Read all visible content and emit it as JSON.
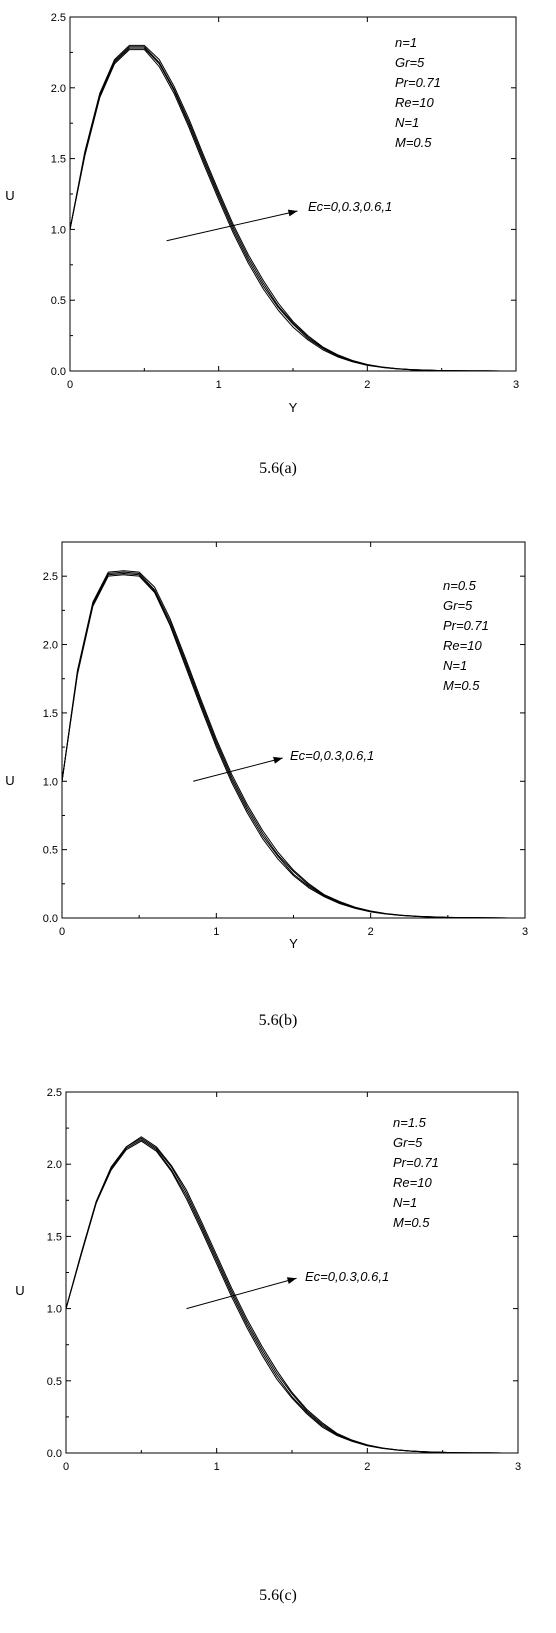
{
  "chart_data": [
    {
      "type": "line",
      "caption": "5.6(a)",
      "xlabel": "Y",
      "ylabel": "U",
      "xlim": [
        0,
        3
      ],
      "ylim": [
        0,
        2.5
      ],
      "xticks": [
        "0",
        "1",
        "2",
        "3"
      ],
      "yticks": [
        "0.0",
        "0.5",
        "1.0",
        "1.5",
        "2.0",
        "2.5"
      ],
      "ytick_values": [
        0,
        0.5,
        1,
        1.5,
        2,
        2.5
      ],
      "xtick_values": [
        0,
        1,
        2,
        3
      ],
      "grid": false,
      "params": [
        "n=1",
        "Gr=5",
        "Pr=0.71",
        "Re=10",
        "N=1",
        "M=0.5"
      ],
      "annotation": "Ec=0,0.3,0.6,1",
      "arrow": {
        "from": [
          0.65,
          0.92
        ],
        "to": [
          1.53,
          1.13
        ]
      },
      "x": [
        0,
        0.1,
        0.2,
        0.3,
        0.4,
        0.5,
        0.6,
        0.7,
        0.8,
        0.9,
        1.0,
        1.1,
        1.2,
        1.3,
        1.4,
        1.5,
        1.6,
        1.7,
        1.8,
        1.9,
        2.0,
        2.1,
        2.2,
        2.3,
        2.4,
        2.5,
        2.6,
        2.7,
        2.8,
        2.9,
        3.0
      ],
      "series": [
        {
          "values": [
            1.0,
            1.52,
            1.93,
            2.17,
            2.27,
            2.27,
            2.15,
            1.96,
            1.72,
            1.46,
            1.21,
            0.97,
            0.76,
            0.58,
            0.43,
            0.31,
            0.22,
            0.15,
            0.1,
            0.065,
            0.04,
            0.025,
            0.015,
            0.009,
            0.005,
            0.003,
            0.002,
            0.001,
            0.0005,
            0.0002,
            0.0
          ]
        },
        {
          "values": [
            1.0,
            1.53,
            1.94,
            2.18,
            2.28,
            2.28,
            2.17,
            1.98,
            1.74,
            1.48,
            1.23,
            0.99,
            0.78,
            0.6,
            0.45,
            0.33,
            0.23,
            0.16,
            0.105,
            0.068,
            0.042,
            0.026,
            0.016,
            0.009,
            0.005,
            0.003,
            0.002,
            0.001,
            0.0005,
            0.0002,
            0.0
          ]
        },
        {
          "values": [
            1.0,
            1.54,
            1.95,
            2.19,
            2.29,
            2.29,
            2.18,
            1.99,
            1.76,
            1.5,
            1.25,
            1.01,
            0.8,
            0.62,
            0.46,
            0.34,
            0.24,
            0.165,
            0.11,
            0.071,
            0.044,
            0.027,
            0.016,
            0.01,
            0.006,
            0.003,
            0.002,
            0.001,
            0.0005,
            0.0002,
            0.0
          ]
        },
        {
          "values": [
            1.0,
            1.55,
            1.96,
            2.2,
            2.3,
            2.3,
            2.2,
            2.01,
            1.78,
            1.52,
            1.27,
            1.03,
            0.82,
            0.64,
            0.48,
            0.35,
            0.25,
            0.17,
            0.115,
            0.074,
            0.046,
            0.028,
            0.017,
            0.01,
            0.006,
            0.003,
            0.002,
            0.001,
            0.0005,
            0.0002,
            0.0
          ]
        }
      ]
    },
    {
      "type": "line",
      "caption": "5.6(b)",
      "xlabel": "Y",
      "ylabel": "U",
      "xlim": [
        0,
        3
      ],
      "ylim": [
        0,
        2.75
      ],
      "xticks": [
        "0",
        "1",
        "2",
        "3"
      ],
      "yticks": [
        "0.0",
        "0.5",
        "1.0",
        "1.5",
        "2.0",
        "2.5"
      ],
      "ytick_values": [
        0,
        0.5,
        1,
        1.5,
        2,
        2.5
      ],
      "xtick_values": [
        0,
        1,
        2,
        3
      ],
      "grid": false,
      "params": [
        "n=0.5",
        "Gr=5",
        "Pr=0.71",
        "Re=10",
        "N=1",
        "M=0.5"
      ],
      "annotation": "Ec=0,0.3,0.6,1",
      "arrow": {
        "from": [
          0.85,
          1.0
        ],
        "to": [
          1.43,
          1.17
        ]
      },
      "x": [
        0,
        0.1,
        0.2,
        0.3,
        0.4,
        0.5,
        0.6,
        0.7,
        0.8,
        0.9,
        1.0,
        1.1,
        1.2,
        1.3,
        1.4,
        1.5,
        1.6,
        1.7,
        1.8,
        1.9,
        2.0,
        2.1,
        2.2,
        2.3,
        2.4,
        2.5,
        2.6,
        2.7,
        2.8,
        2.9,
        3.0
      ],
      "series": [
        {
          "values": [
            1.0,
            1.78,
            2.28,
            2.5,
            2.51,
            2.5,
            2.38,
            2.14,
            1.84,
            1.54,
            1.25,
            0.99,
            0.77,
            0.58,
            0.43,
            0.31,
            0.22,
            0.155,
            0.105,
            0.07,
            0.045,
            0.029,
            0.018,
            0.011,
            0.007,
            0.004,
            0.0025,
            0.0015,
            0.0008,
            0.0003,
            0.0
          ]
        },
        {
          "values": [
            1.0,
            1.79,
            2.29,
            2.51,
            2.52,
            2.51,
            2.39,
            2.15,
            1.86,
            1.56,
            1.27,
            1.01,
            0.79,
            0.6,
            0.45,
            0.32,
            0.23,
            0.16,
            0.11,
            0.073,
            0.047,
            0.03,
            0.019,
            0.012,
            0.007,
            0.004,
            0.0025,
            0.0015,
            0.0008,
            0.0003,
            0.0
          ]
        },
        {
          "values": [
            1.0,
            1.8,
            2.3,
            2.52,
            2.53,
            2.52,
            2.4,
            2.17,
            1.88,
            1.58,
            1.29,
            1.03,
            0.81,
            0.62,
            0.46,
            0.34,
            0.24,
            0.165,
            0.115,
            0.076,
            0.049,
            0.031,
            0.02,
            0.012,
            0.008,
            0.005,
            0.003,
            0.0015,
            0.0008,
            0.0003,
            0.0
          ]
        },
        {
          "values": [
            1.0,
            1.81,
            2.31,
            2.53,
            2.54,
            2.53,
            2.42,
            2.19,
            1.9,
            1.6,
            1.31,
            1.05,
            0.83,
            0.64,
            0.48,
            0.35,
            0.25,
            0.17,
            0.12,
            0.079,
            0.051,
            0.032,
            0.02,
            0.013,
            0.008,
            0.005,
            0.003,
            0.0015,
            0.0008,
            0.0003,
            0.0
          ]
        }
      ]
    },
    {
      "type": "line",
      "caption": "5.6(c)",
      "xlabel": "",
      "ylabel": "U",
      "xlim": [
        0,
        3
      ],
      "ylim": [
        0,
        2.5
      ],
      "xticks": [
        "0",
        "1",
        "2",
        "3"
      ],
      "yticks": [
        "0.0",
        "0.5",
        "1.0",
        "1.5",
        "2.0",
        "2.5"
      ],
      "ytick_values": [
        0,
        0.5,
        1,
        1.5,
        2,
        2.5
      ],
      "xtick_values": [
        0,
        1,
        2,
        3
      ],
      "grid": false,
      "params": [
        "n=1.5",
        "Gr=5",
        "Pr=0.71",
        "Re=10",
        "N=1",
        "M=0.5"
      ],
      "annotation": "Ec=0,0.3,0.6,1",
      "arrow": {
        "from": [
          0.8,
          1.0
        ],
        "to": [
          1.53,
          1.21
        ]
      },
      "x": [
        0,
        0.1,
        0.2,
        0.3,
        0.4,
        0.5,
        0.6,
        0.7,
        0.8,
        0.9,
        1.0,
        1.1,
        1.2,
        1.3,
        1.4,
        1.5,
        1.6,
        1.7,
        1.8,
        1.9,
        2.0,
        2.1,
        2.2,
        2.3,
        2.4,
        2.5,
        2.6,
        2.7,
        2.8,
        2.9,
        3.0
      ],
      "series": [
        {
          "values": [
            1.0,
            1.37,
            1.73,
            1.96,
            2.1,
            2.16,
            2.09,
            1.95,
            1.76,
            1.54,
            1.31,
            1.08,
            0.87,
            0.68,
            0.51,
            0.38,
            0.27,
            0.18,
            0.12,
            0.08,
            0.05,
            0.032,
            0.02,
            0.012,
            0.007,
            0.004,
            0.002,
            0.001,
            0.0005,
            0.0002,
            0.0
          ]
        },
        {
          "values": [
            1.0,
            1.37,
            1.73,
            1.97,
            2.11,
            2.17,
            2.1,
            1.96,
            1.78,
            1.56,
            1.33,
            1.1,
            0.89,
            0.7,
            0.53,
            0.39,
            0.28,
            0.19,
            0.125,
            0.083,
            0.052,
            0.033,
            0.021,
            0.012,
            0.007,
            0.004,
            0.002,
            0.001,
            0.0005,
            0.0002,
            0.0
          ]
        },
        {
          "values": [
            1.0,
            1.38,
            1.74,
            1.98,
            2.12,
            2.18,
            2.11,
            1.98,
            1.8,
            1.58,
            1.35,
            1.12,
            0.91,
            0.72,
            0.55,
            0.41,
            0.29,
            0.2,
            0.13,
            0.086,
            0.054,
            0.034,
            0.021,
            0.013,
            0.008,
            0.004,
            0.002,
            0.001,
            0.0005,
            0.0002,
            0.0
          ]
        },
        {
          "values": [
            1.0,
            1.38,
            1.74,
            1.98,
            2.12,
            2.19,
            2.12,
            1.99,
            1.82,
            1.6,
            1.37,
            1.14,
            0.93,
            0.74,
            0.57,
            0.42,
            0.3,
            0.21,
            0.135,
            0.089,
            0.056,
            0.035,
            0.022,
            0.013,
            0.008,
            0.004,
            0.002,
            0.001,
            0.0005,
            0.0002,
            0.0
          ]
        }
      ]
    }
  ]
}
